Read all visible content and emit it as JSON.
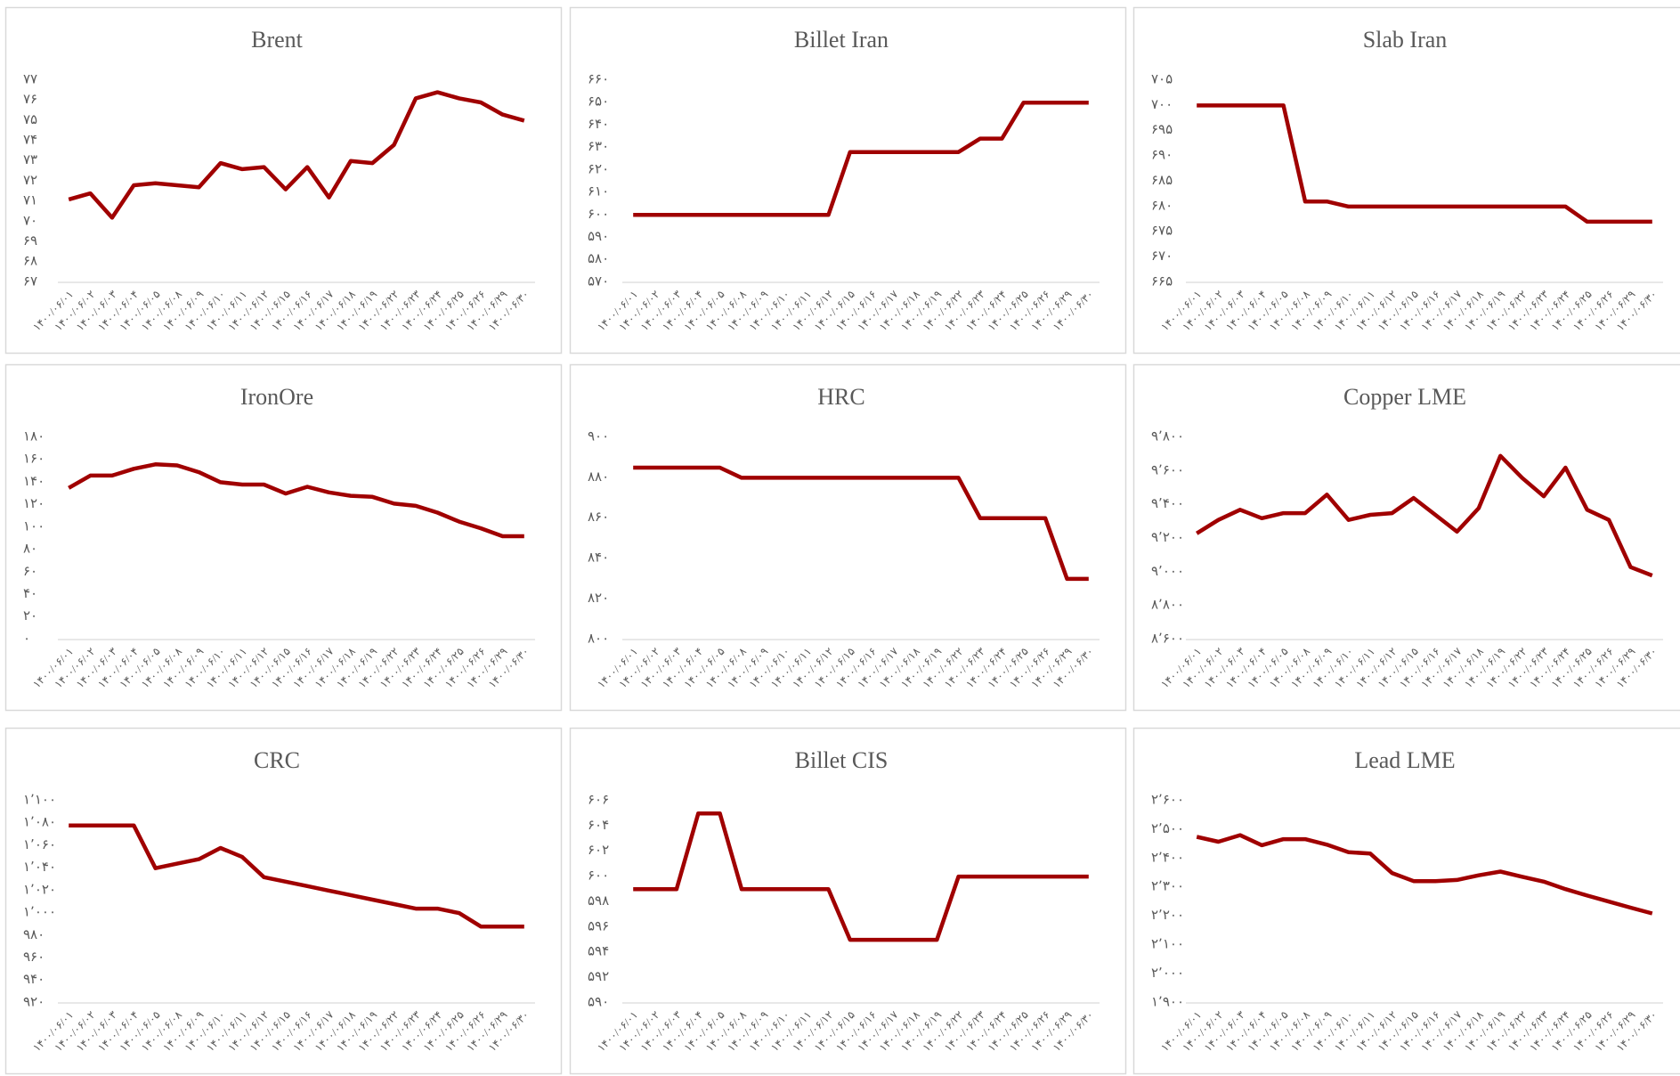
{
  "chart_data": [
    {
      "type": "line",
      "title": "Brent",
      "color": "#a00000",
      "categories": [
        "۱۴۰۰/۰۶/۰۱",
        "۱۴۰۰/۰۶/۰۲",
        "۱۴۰۰/۰۶/۰۳",
        "۱۴۰۰/۰۶/۰۴",
        "۱۴۰۰/۰۶/۰۵",
        "۱۴۰۰/۰۶/۰۸",
        "۱۴۰۰/۰۶/۰۹",
        "۱۴۰۰/۰۶/۱۰",
        "۱۴۰۰/۰۶/۱۱",
        "۱۴۰۰/۰۶/۱۲",
        "۱۴۰۰/۰۶/۱۵",
        "۱۴۰۰/۰۶/۱۶",
        "۱۴۰۰/۰۶/۱۷",
        "۱۴۰۰/۰۶/۱۸",
        "۱۴۰۰/۰۶/۱۹",
        "۱۴۰۰/۰۶/۲۲",
        "۱۴۰۰/۰۶/۲۳",
        "۱۴۰۰/۰۶/۲۴",
        "۱۴۰۰/۰۶/۲۵",
        "۱۴۰۰/۰۶/۲۶",
        "۱۴۰۰/۰۶/۲۹",
        "۱۴۰۰/۰۶/۳۰"
      ],
      "values": [
        71.1,
        71.4,
        70.2,
        71.8,
        71.9,
        71.8,
        71.7,
        72.9,
        72.6,
        72.7,
        71.6,
        72.7,
        71.2,
        73.0,
        72.9,
        73.8,
        76.1,
        76.4,
        76.1,
        75.9,
        75.3,
        75.0
      ],
      "ylim": [
        67,
        77
      ],
      "yticks": [
        {
          "value": 67,
          "label": "۶۷"
        },
        {
          "value": 68,
          "label": "۶۸"
        },
        {
          "value": 69,
          "label": "۶۹"
        },
        {
          "value": 70,
          "label": "۷۰"
        },
        {
          "value": 71,
          "label": "۷۱"
        },
        {
          "value": 72,
          "label": "۷۲"
        },
        {
          "value": 73,
          "label": "۷۳"
        },
        {
          "value": 74,
          "label": "۷۴"
        },
        {
          "value": 75,
          "label": "۷۵"
        },
        {
          "value": 76,
          "label": "۷۶"
        },
        {
          "value": 77,
          "label": "۷۷"
        }
      ]
    },
    {
      "type": "line",
      "title": "Billet Iran",
      "color": "#a00000",
      "categories": [
        "۱۴۰۰/۰۶/۰۱",
        "۱۴۰۰/۰۶/۰۲",
        "۱۴۰۰/۰۶/۰۳",
        "۱۴۰۰/۰۶/۰۴",
        "۱۴۰۰/۰۶/۰۵",
        "۱۴۰۰/۰۶/۰۸",
        "۱۴۰۰/۰۶/۰۹",
        "۱۴۰۰/۰۶/۱۰",
        "۱۴۰۰/۰۶/۱۱",
        "۱۴۰۰/۰۶/۱۲",
        "۱۴۰۰/۰۶/۱۵",
        "۱۴۰۰/۰۶/۱۶",
        "۱۴۰۰/۰۶/۱۷",
        "۱۴۰۰/۰۶/۱۸",
        "۱۴۰۰/۰۶/۱۹",
        "۱۴۰۰/۰۶/۲۲",
        "۱۴۰۰/۰۶/۲۳",
        "۱۴۰۰/۰۶/۲۴",
        "۱۴۰۰/۰۶/۲۵",
        "۱۴۰۰/۰۶/۲۶",
        "۱۴۰۰/۰۶/۲۹",
        "۱۴۰۰/۰۶/۳۰"
      ],
      "values": [
        600,
        600,
        600,
        600,
        600,
        600,
        600,
        600,
        600,
        600,
        628,
        628,
        628,
        628,
        628,
        628,
        634,
        634,
        650,
        650,
        650,
        650
      ],
      "ylim": [
        570,
        660
      ],
      "yticks": [
        {
          "value": 570,
          "label": "۵۷۰"
        },
        {
          "value": 580,
          "label": "۵۸۰"
        },
        {
          "value": 590,
          "label": "۵۹۰"
        },
        {
          "value": 600,
          "label": "۶۰۰"
        },
        {
          "value": 610,
          "label": "۶۱۰"
        },
        {
          "value": 620,
          "label": "۶۲۰"
        },
        {
          "value": 630,
          "label": "۶۳۰"
        },
        {
          "value": 640,
          "label": "۶۴۰"
        },
        {
          "value": 650,
          "label": "۶۵۰"
        },
        {
          "value": 660,
          "label": "۶۶۰"
        }
      ]
    },
    {
      "type": "line",
      "title": "Slab Iran",
      "color": "#a00000",
      "categories": [
        "۱۴۰۰/۰۶/۰۱",
        "۱۴۰۰/۰۶/۰۲",
        "۱۴۰۰/۰۶/۰۳",
        "۱۴۰۰/۰۶/۰۴",
        "۱۴۰۰/۰۶/۰۵",
        "۱۴۰۰/۰۶/۰۸",
        "۱۴۰۰/۰۶/۰۹",
        "۱۴۰۰/۰۶/۱۰",
        "۱۴۰۰/۰۶/۱۱",
        "۱۴۰۰/۰۶/۱۲",
        "۱۴۰۰/۰۶/۱۵",
        "۱۴۰۰/۰۶/۱۶",
        "۱۴۰۰/۰۶/۱۷",
        "۱۴۰۰/۰۶/۱۸",
        "۱۴۰۰/۰۶/۱۹",
        "۱۴۰۰/۰۶/۲۲",
        "۱۴۰۰/۰۶/۲۳",
        "۱۴۰۰/۰۶/۲۴",
        "۱۴۰۰/۰۶/۲۵",
        "۱۴۰۰/۰۶/۲۶",
        "۱۴۰۰/۰۶/۲۹",
        "۱۴۰۰/۰۶/۳۰"
      ],
      "values": [
        700,
        700,
        700,
        700,
        700,
        681,
        681,
        680,
        680,
        680,
        680,
        680,
        680,
        680,
        680,
        680,
        680,
        680,
        677,
        677,
        677,
        677
      ],
      "ylim": [
        665,
        705
      ],
      "yticks": [
        {
          "value": 665,
          "label": "۶۶۵"
        },
        {
          "value": 670,
          "label": "۶۷۰"
        },
        {
          "value": 675,
          "label": "۶۷۵"
        },
        {
          "value": 680,
          "label": "۶۸۰"
        },
        {
          "value": 685,
          "label": "۶۸۵"
        },
        {
          "value": 690,
          "label": "۶۹۰"
        },
        {
          "value": 695,
          "label": "۶۹۵"
        },
        {
          "value": 700,
          "label": "۷۰۰"
        },
        {
          "value": 705,
          "label": "۷۰۵"
        }
      ]
    },
    {
      "type": "line",
      "title": "IronOre",
      "color": "#a00000",
      "categories": [
        "۱۴۰۰/۰۶/۰۱",
        "۱۴۰۰/۰۶/۰۲",
        "۱۴۰۰/۰۶/۰۳",
        "۱۴۰۰/۰۶/۰۴",
        "۱۴۰۰/۰۶/۰۵",
        "۱۴۰۰/۰۶/۰۸",
        "۱۴۰۰/۰۶/۰۹",
        "۱۴۰۰/۰۶/۱۰",
        "۱۴۰۰/۰۶/۱۱",
        "۱۴۰۰/۰۶/۱۲",
        "۱۴۰۰/۰۶/۱۵",
        "۱۴۰۰/۰۶/۱۶",
        "۱۴۰۰/۰۶/۱۷",
        "۱۴۰۰/۰۶/۱۸",
        "۱۴۰۰/۰۶/۱۹",
        "۱۴۰۰/۰۶/۲۲",
        "۱۴۰۰/۰۶/۲۳",
        "۱۴۰۰/۰۶/۲۴",
        "۱۴۰۰/۰۶/۲۵",
        "۱۴۰۰/۰۶/۲۶",
        "۱۴۰۰/۰۶/۲۹",
        "۱۴۰۰/۰۶/۳۰"
      ],
      "values": [
        135,
        146,
        146,
        152,
        156,
        155,
        149,
        140,
        138,
        138,
        130,
        136,
        131,
        128,
        127,
        121,
        119,
        113,
        105,
        99,
        92,
        92
      ],
      "ylim": [
        0,
        180
      ],
      "yticks": [
        {
          "value": 0,
          "label": "۰"
        },
        {
          "value": 20,
          "label": "۲۰"
        },
        {
          "value": 40,
          "label": "۴۰"
        },
        {
          "value": 60,
          "label": "۶۰"
        },
        {
          "value": 80,
          "label": "۸۰"
        },
        {
          "value": 100,
          "label": "۱۰۰"
        },
        {
          "value": 120,
          "label": "۱۲۰"
        },
        {
          "value": 140,
          "label": "۱۴۰"
        },
        {
          "value": 160,
          "label": "۱۶۰"
        },
        {
          "value": 180,
          "label": "۱۸۰"
        }
      ]
    },
    {
      "type": "line",
      "title": "HRC",
      "color": "#a00000",
      "categories": [
        "۱۴۰۰/۰۶/۰۱",
        "۱۴۰۰/۰۶/۰۲",
        "۱۴۰۰/۰۶/۰۳",
        "۱۴۰۰/۰۶/۰۴",
        "۱۴۰۰/۰۶/۰۵",
        "۱۴۰۰/۰۶/۰۸",
        "۱۴۰۰/۰۶/۰۹",
        "۱۴۰۰/۰۶/۱۰",
        "۱۴۰۰/۰۶/۱۱",
        "۱۴۰۰/۰۶/۱۲",
        "۱۴۰۰/۰۶/۱۵",
        "۱۴۰۰/۰۶/۱۶",
        "۱۴۰۰/۰۶/۱۷",
        "۱۴۰۰/۰۶/۱۸",
        "۱۴۰۰/۰۶/۱۹",
        "۱۴۰۰/۰۶/۲۲",
        "۱۴۰۰/۰۶/۲۳",
        "۱۴۰۰/۰۶/۲۴",
        "۱۴۰۰/۰۶/۲۵",
        "۱۴۰۰/۰۶/۲۶",
        "۱۴۰۰/۰۶/۲۹",
        "۱۴۰۰/۰۶/۳۰"
      ],
      "values": [
        885,
        885,
        885,
        885,
        885,
        880,
        880,
        880,
        880,
        880,
        880,
        880,
        880,
        880,
        880,
        880,
        860,
        860,
        860,
        860,
        830,
        830
      ],
      "ylim": [
        800,
        900
      ],
      "yticks": [
        {
          "value": 800,
          "label": "۸۰۰"
        },
        {
          "value": 820,
          "label": "۸۲۰"
        },
        {
          "value": 840,
          "label": "۸۴۰"
        },
        {
          "value": 860,
          "label": "۸۶۰"
        },
        {
          "value": 880,
          "label": "۸۸۰"
        },
        {
          "value": 900,
          "label": "۹۰۰"
        }
      ]
    },
    {
      "type": "line",
      "title": "Copper LME",
      "color": "#a00000",
      "categories": [
        "۱۴۰۰/۰۶/۰۱",
        "۱۴۰۰/۰۶/۰۲",
        "۱۴۰۰/۰۶/۰۳",
        "۱۴۰۰/۰۶/۰۴",
        "۱۴۰۰/۰۶/۰۵",
        "۱۴۰۰/۰۶/۰۸",
        "۱۴۰۰/۰۶/۰۹",
        "۱۴۰۰/۰۶/۱۰",
        "۱۴۰۰/۰۶/۱۱",
        "۱۴۰۰/۰۶/۱۲",
        "۱۴۰۰/۰۶/۱۵",
        "۱۴۰۰/۰۶/۱۶",
        "۱۴۰۰/۰۶/۱۷",
        "۱۴۰۰/۰۶/۱۸",
        "۱۴۰۰/۰۶/۱۹",
        "۱۴۰۰/۰۶/۲۲",
        "۱۴۰۰/۰۶/۲۳",
        "۱۴۰۰/۰۶/۲۴",
        "۱۴۰۰/۰۶/۲۵",
        "۱۴۰۰/۰۶/۲۶",
        "۱۴۰۰/۰۶/۲۹",
        "۱۴۰۰/۰۶/۳۰"
      ],
      "values": [
        9230,
        9310,
        9370,
        9320,
        9350,
        9350,
        9460,
        9310,
        9340,
        9350,
        9440,
        9340,
        9240,
        9380,
        9690,
        9560,
        9450,
        9620,
        9370,
        9310,
        9030,
        8980
      ],
      "ylim": [
        8600,
        9800
      ],
      "yticks": [
        {
          "value": 8600,
          "label": "۸٬۶۰۰"
        },
        {
          "value": 8800,
          "label": "۸٬۸۰۰"
        },
        {
          "value": 9000,
          "label": "۹٬۰۰۰"
        },
        {
          "value": 9200,
          "label": "۹٬۲۰۰"
        },
        {
          "value": 9400,
          "label": "۹٬۴۰۰"
        },
        {
          "value": 9600,
          "label": "۹٬۶۰۰"
        },
        {
          "value": 9800,
          "label": "۹٬۸۰۰"
        }
      ]
    },
    {
      "type": "line",
      "title": "CRC",
      "color": "#a00000",
      "categories": [
        "۱۴۰۰/۰۶/۰۱",
        "۱۴۰۰/۰۶/۰۲",
        "۱۴۰۰/۰۶/۰۳",
        "۱۴۰۰/۰۶/۰۴",
        "۱۴۰۰/۰۶/۰۵",
        "۱۴۰۰/۰۶/۰۸",
        "۱۴۰۰/۰۶/۰۹",
        "۱۴۰۰/۰۶/۱۰",
        "۱۴۰۰/۰۶/۱۱",
        "۱۴۰۰/۰۶/۱۲",
        "۱۴۰۰/۰۶/۱۵",
        "۱۴۰۰/۰۶/۱۶",
        "۱۴۰۰/۰۶/۱۷",
        "۱۴۰۰/۰۶/۱۸",
        "۱۴۰۰/۰۶/۱۹",
        "۱۴۰۰/۰۶/۲۲",
        "۱۴۰۰/۰۶/۲۳",
        "۱۴۰۰/۰۶/۲۴",
        "۱۴۰۰/۰۶/۲۵",
        "۱۴۰۰/۰۶/۲۶",
        "۱۴۰۰/۰۶/۲۹",
        "۱۴۰۰/۰۶/۳۰"
      ],
      "values": [
        1078,
        1078,
        1078,
        1078,
        1040,
        1044,
        1048,
        1058,
        1050,
        1032,
        1028,
        1024,
        1020,
        1016,
        1012,
        1008,
        1004,
        1004,
        1000,
        988,
        988,
        988
      ],
      "ylim": [
        920,
        1100
      ],
      "yticks": [
        {
          "value": 920,
          "label": "۹۲۰"
        },
        {
          "value": 940,
          "label": "۹۴۰"
        },
        {
          "value": 960,
          "label": "۹۶۰"
        },
        {
          "value": 980,
          "label": "۹۸۰"
        },
        {
          "value": 1000,
          "label": "۱٬۰۰۰"
        },
        {
          "value": 1020,
          "label": "۱٬۰۲۰"
        },
        {
          "value": 1040,
          "label": "۱٬۰۴۰"
        },
        {
          "value": 1060,
          "label": "۱٬۰۶۰"
        },
        {
          "value": 1080,
          "label": "۱٬۰۸۰"
        },
        {
          "value": 1100,
          "label": "۱٬۱۰۰"
        }
      ]
    },
    {
      "type": "line",
      "title": "Billet CIS",
      "color": "#a00000",
      "categories": [
        "۱۴۰۰/۰۶/۰۱",
        "۱۴۰۰/۰۶/۰۲",
        "۱۴۰۰/۰۶/۰۳",
        "۱۴۰۰/۰۶/۰۴",
        "۱۴۰۰/۰۶/۰۵",
        "۱۴۰۰/۰۶/۰۸",
        "۱۴۰۰/۰۶/۰۹",
        "۱۴۰۰/۰۶/۱۰",
        "۱۴۰۰/۰۶/۱۱",
        "۱۴۰۰/۰۶/۱۲",
        "۱۴۰۰/۰۶/۱۵",
        "۱۴۰۰/۰۶/۱۶",
        "۱۴۰۰/۰۶/۱۷",
        "۱۴۰۰/۰۶/۱۸",
        "۱۴۰۰/۰۶/۱۹",
        "۱۴۰۰/۰۶/۲۲",
        "۱۴۰۰/۰۶/۲۳",
        "۱۴۰۰/۰۶/۲۴",
        "۱۴۰۰/۰۶/۲۵",
        "۱۴۰۰/۰۶/۲۶",
        "۱۴۰۰/۰۶/۲۹",
        "۱۴۰۰/۰۶/۳۰"
      ],
      "values": [
        599,
        599,
        599,
        605,
        605,
        599,
        599,
        599,
        599,
        599,
        595,
        595,
        595,
        595,
        595,
        600,
        600,
        600,
        600,
        600,
        600,
        600
      ],
      "ylim": [
        590,
        606
      ],
      "yticks": [
        {
          "value": 590,
          "label": "۵۹۰"
        },
        {
          "value": 592,
          "label": "۵۹۲"
        },
        {
          "value": 594,
          "label": "۵۹۴"
        },
        {
          "value": 596,
          "label": "۵۹۶"
        },
        {
          "value": 598,
          "label": "۵۹۸"
        },
        {
          "value": 600,
          "label": "۶۰۰"
        },
        {
          "value": 602,
          "label": "۶۰۲"
        },
        {
          "value": 604,
          "label": "۶۰۴"
        },
        {
          "value": 606,
          "label": "۶۰۶"
        }
      ]
    },
    {
      "type": "line",
      "title": "Lead LME",
      "color": "#a00000",
      "categories": [
        "۱۴۰۰/۰۶/۰۱",
        "۱۴۰۰/۰۶/۰۲",
        "۱۴۰۰/۰۶/۰۳",
        "۱۴۰۰/۰۶/۰۴",
        "۱۴۰۰/۰۶/۰۵",
        "۱۴۰۰/۰۶/۰۸",
        "۱۴۰۰/۰۶/۰۹",
        "۱۴۰۰/۰۶/۱۰",
        "۱۴۰۰/۰۶/۱۱",
        "۱۴۰۰/۰۶/۱۲",
        "۱۴۰۰/۰۶/۱۵",
        "۱۴۰۰/۰۶/۱۶",
        "۱۴۰۰/۰۶/۱۷",
        "۱۴۰۰/۰۶/۱۸",
        "۱۴۰۰/۰۶/۱۹",
        "۱۴۰۰/۰۶/۲۲",
        "۱۴۰۰/۰۶/۲۳",
        "۱۴۰۰/۰۶/۲۴",
        "۱۴۰۰/۰۶/۲۵",
        "۱۴۰۰/۰۶/۲۶",
        "۱۴۰۰/۰۶/۲۹",
        "۱۴۰۰/۰۶/۳۰"
      ],
      "values": [
        2475,
        2458,
        2481,
        2446,
        2467,
        2467,
        2448,
        2422,
        2417,
        2350,
        2322,
        2322,
        2326,
        2342,
        2355,
        2337,
        2320,
        2294,
        2272,
        2251,
        2230,
        2210
      ],
      "ylim": [
        1900,
        2600
      ],
      "yticks": [
        {
          "value": 1900,
          "label": "۱٬۹۰۰"
        },
        {
          "value": 2000,
          "label": "۲٬۰۰۰"
        },
        {
          "value": 2100,
          "label": "۲٬۱۰۰"
        },
        {
          "value": 2200,
          "label": "۲٬۲۰۰"
        },
        {
          "value": 2300,
          "label": "۲٬۳۰۰"
        },
        {
          "value": 2400,
          "label": "۲٬۴۰۰"
        },
        {
          "value": 2500,
          "label": "۲٬۵۰۰"
        },
        {
          "value": 2600,
          "label": "۲٬۶۰۰"
        }
      ]
    }
  ]
}
